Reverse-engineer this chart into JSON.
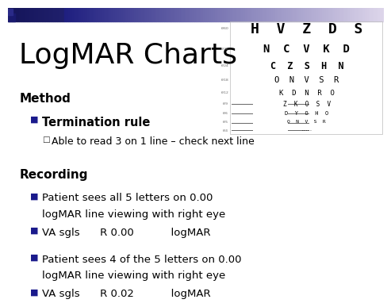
{
  "title": "LogMAR Charts",
  "title_fontsize": 26,
  "background_color": "#ffffff",
  "text_color": "#000000",
  "bullet_color": "#1a1a8c",
  "method_label": "Method",
  "method_fontsize": 11,
  "term_rule_label": "Termination rule",
  "term_rule_fontsize": 10.5,
  "sub_bullet_label": "Able to read 3 on 1 line – check next line",
  "sub_bullet_fontsize": 9,
  "recording_label": "Recording",
  "recording_fontsize": 11,
  "bullet1_line1": "Patient sees all 5 letters on 0.00",
  "bullet1_line2": "logMAR line viewing with right eye",
  "bullet1_fontsize": 9.5,
  "bullet2_label": "VA sgls      R 0.00           logMAR",
  "bullet2_fontsize": 9.5,
  "bullet3_line1": "Patient sees 4 of the 5 letters on 0.00",
  "bullet3_line2": "logMAR line viewing with right eye",
  "bullet3_fontsize": 9.5,
  "bullet4_label": "VA sgls      R 0.02           logMAR",
  "bullet4_fontsize": 9.5,
  "chart_rows": [
    "H  V  Z  D  S",
    "N  C  V  K  D",
    "C  Z  S  H  N",
    "O  N  V  S  R",
    "K  D  N  R  O",
    "Z  K  O  S  V",
    "D  Y  O  H  O",
    "O  N  V  S  R",
    "·····"
  ],
  "chart_fontsizes": [
    13,
    10,
    8.5,
    7.5,
    6.5,
    5.5,
    5,
    4.5,
    3.5
  ],
  "chart_bold": [
    true,
    true,
    true,
    false,
    false,
    false,
    false,
    false,
    false
  ]
}
